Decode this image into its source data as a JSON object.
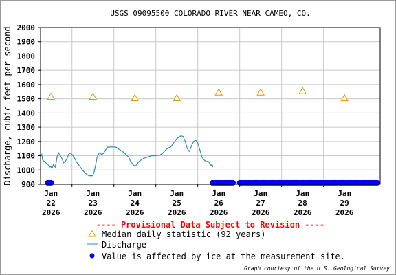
{
  "chart_data": {
    "type": "line",
    "title": "USGS 09095500 COLORADO RIVER NEAR CAMEO, CO.",
    "ylabel": "Discharge, cubic feet per second",
    "xlabel": "",
    "ylim": [
      900,
      2000
    ],
    "xlim_days": [
      21.75,
      29.85
    ],
    "grid": true,
    "y_ticks": [
      900,
      1000,
      1100,
      1200,
      1300,
      1400,
      1500,
      1600,
      1700,
      1800,
      1900,
      2000
    ],
    "x_ticks": [
      {
        "day": 22,
        "l1": "Jan",
        "l2": "22",
        "l3": "2026"
      },
      {
        "day": 23,
        "l1": "Jan",
        "l2": "23",
        "l3": "2026"
      },
      {
        "day": 24,
        "l1": "Jan",
        "l2": "24",
        "l3": "2026"
      },
      {
        "day": 25,
        "l1": "Jan",
        "l2": "25",
        "l3": "2026"
      },
      {
        "day": 26,
        "l1": "Jan",
        "l2": "26",
        "l3": "2026"
      },
      {
        "day": 27,
        "l1": "Jan",
        "l2": "27",
        "l3": "2026"
      },
      {
        "day": 28,
        "l1": "Jan",
        "l2": "28",
        "l3": "2026"
      },
      {
        "day": 29,
        "l1": "Jan",
        "l2": "29",
        "l3": "2026"
      }
    ],
    "series": [
      {
        "name": "Median daily statistic (92 years)",
        "kind": "triangle",
        "color": "#e69500",
        "points": [
          [
            22,
            1515
          ],
          [
            23,
            1515
          ],
          [
            24,
            1505
          ],
          [
            25,
            1505
          ],
          [
            26,
            1545
          ],
          [
            27,
            1545
          ],
          [
            28,
            1555
          ],
          [
            29,
            1505
          ]
        ]
      },
      {
        "name": "Discharge",
        "kind": "line",
        "color": "#2e8bc0",
        "points": [
          [
            21.75,
            1095
          ],
          [
            21.78,
            1110
          ],
          [
            21.8,
            1070
          ],
          [
            21.84,
            1060
          ],
          [
            21.88,
            1050
          ],
          [
            21.92,
            1040
          ],
          [
            21.95,
            1030
          ],
          [
            21.98,
            1020
          ],
          [
            22.0,
            1025
          ],
          [
            22.02,
            1010
          ],
          [
            22.04,
            1025
          ],
          [
            22.06,
            1040
          ],
          [
            22.08,
            1030
          ],
          [
            22.1,
            1020
          ],
          [
            22.12,
            1050
          ],
          [
            22.15,
            1100
          ],
          [
            22.18,
            1120
          ],
          [
            22.2,
            1110
          ],
          [
            22.23,
            1095
          ],
          [
            22.26,
            1080
          ],
          [
            22.3,
            1050
          ],
          [
            22.34,
            1060
          ],
          [
            22.38,
            1080
          ],
          [
            22.42,
            1110
          ],
          [
            22.46,
            1120
          ],
          [
            22.5,
            1110
          ],
          [
            22.55,
            1090
          ],
          [
            22.6,
            1060
          ],
          [
            22.65,
            1040
          ],
          [
            22.7,
            1020
          ],
          [
            22.75,
            1000
          ],
          [
            22.8,
            985
          ],
          [
            22.85,
            970
          ],
          [
            22.9,
            960
          ],
          [
            22.95,
            960
          ],
          [
            23.0,
            960
          ],
          [
            23.03,
            990
          ],
          [
            23.06,
            1030
          ],
          [
            23.1,
            1090
          ],
          [
            23.15,
            1120
          ],
          [
            23.2,
            1110
          ],
          [
            23.25,
            1115
          ],
          [
            23.3,
            1140
          ],
          [
            23.35,
            1160
          ],
          [
            23.45,
            1162
          ],
          [
            23.55,
            1160
          ],
          [
            23.65,
            1140
          ],
          [
            23.75,
            1120
          ],
          [
            23.85,
            1090
          ],
          [
            23.9,
            1060
          ],
          [
            23.95,
            1040
          ],
          [
            24.0,
            1025
          ],
          [
            24.05,
            1040
          ],
          [
            24.1,
            1060
          ],
          [
            24.2,
            1080
          ],
          [
            24.3,
            1090
          ],
          [
            24.4,
            1100
          ],
          [
            24.5,
            1100
          ],
          [
            24.6,
            1105
          ],
          [
            24.65,
            1115
          ],
          [
            24.7,
            1130
          ],
          [
            24.75,
            1145
          ],
          [
            24.8,
            1155
          ],
          [
            24.85,
            1160
          ],
          [
            24.9,
            1180
          ],
          [
            24.95,
            1200
          ],
          [
            25.0,
            1220
          ],
          [
            25.05,
            1230
          ],
          [
            25.1,
            1240
          ],
          [
            25.15,
            1235
          ],
          [
            25.2,
            1200
          ],
          [
            25.25,
            1150
          ],
          [
            25.3,
            1130
          ],
          [
            25.35,
            1170
          ],
          [
            25.4,
            1200
          ],
          [
            25.45,
            1210
          ],
          [
            25.5,
            1190
          ],
          [
            25.55,
            1140
          ],
          [
            25.6,
            1090
          ],
          [
            25.65,
            1070
          ],
          [
            25.7,
            1060
          ],
          [
            25.75,
            1060
          ],
          [
            25.8,
            1040
          ],
          [
            25.82,
            1030
          ],
          [
            25.84,
            1040
          ],
          [
            25.86,
            1020
          ]
        ]
      },
      {
        "name": "Value is affected by ice at the measurement site.",
        "kind": "dots",
        "color": "#0000ff",
        "y": 910,
        "ranges": [
          [
            21.92,
            22.02
          ],
          [
            25.85,
            26.35
          ],
          [
            26.5,
            29.85
          ]
        ]
      }
    ],
    "legend": {
      "header": "---- Provisional Data Subject to Revision ----",
      "header_color": "#ff0000",
      "items": [
        {
          "label": "Median daily statistic (92 years)",
          "kind": "triangle"
        },
        {
          "label": "Discharge",
          "kind": "line"
        },
        {
          "label": "Value is affected by ice at the measurement site.",
          "kind": "dot"
        }
      ]
    },
    "credit": "Graph courtesy of the U.S. Geological Survey"
  }
}
